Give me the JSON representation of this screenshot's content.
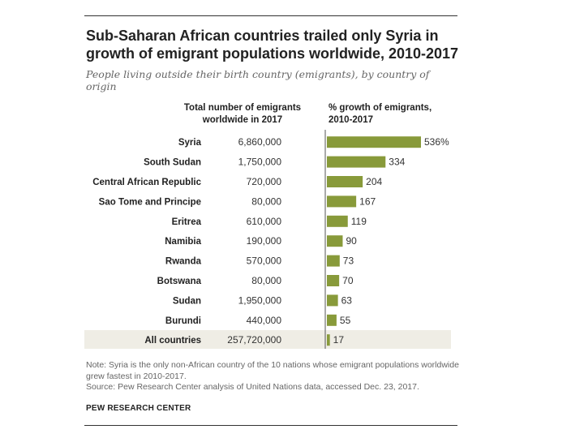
{
  "title": "Sub-Saharan African countries trailed only Syria in growth of emigrant populations worldwide, 2010-2017",
  "subtitle": "People living outside their birth country (emigrants), by country of origin",
  "note": "Note: Syria is the only non-African country of the 10 nations whose emigrant populations worldwide grew fastest in 2010-2017.",
  "source": "Source: Pew Research Center analysis of United Nations data, accessed Dec. 23, 2017.",
  "brand": "PEW RESEARCH CENTER",
  "colors": {
    "bar": "#889a3a",
    "highlight_row": "#efede5",
    "divider": "#555555"
  },
  "chart_data": {
    "type": "bar",
    "orientation": "horizontal",
    "column_headers": {
      "emigrants": "Total number of emigrants worldwide in 2017",
      "growth": "% growth of emigrants, 2010-2017"
    },
    "categories": [
      "Syria",
      "South Sudan",
      "Central African Republic",
      "Sao Tome and Principe",
      "Eritrea",
      "Namibia",
      "Rwanda",
      "Botswana",
      "Sudan",
      "Burundi",
      "All countries"
    ],
    "emigrants_2017": [
      "6,860,000",
      "1,750,000",
      "720,000",
      "80,000",
      "610,000",
      "190,000",
      "570,000",
      "80,000",
      "1,950,000",
      "440,000",
      "257,720,000"
    ],
    "values": [
      536,
      334,
      204,
      167,
      119,
      90,
      73,
      70,
      63,
      55,
      17
    ],
    "value_labels": [
      "536%",
      "334",
      "204",
      "167",
      "119",
      "90",
      "73",
      "70",
      "63",
      "55",
      "17"
    ],
    "highlighted_category": "All countries"
  }
}
